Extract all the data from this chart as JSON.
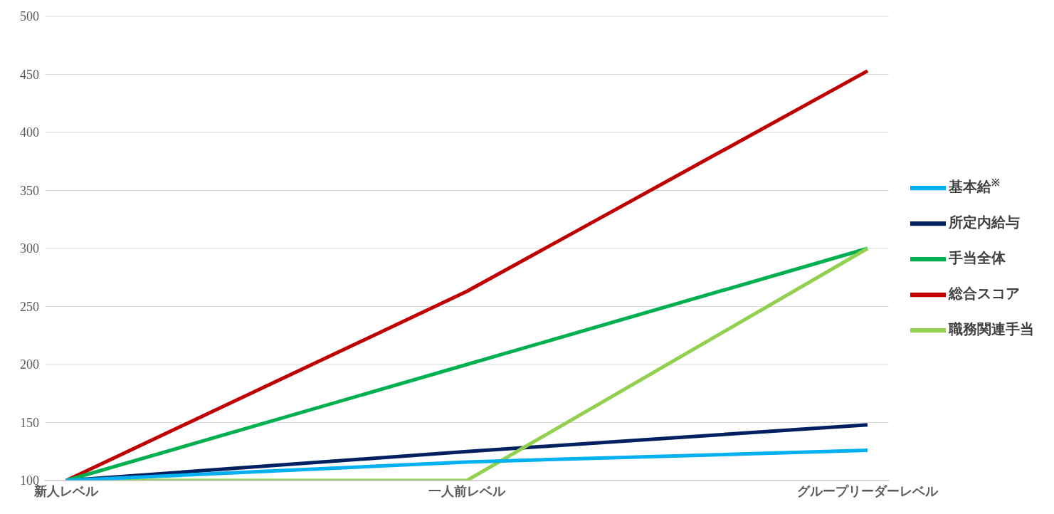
{
  "chart_data": {
    "type": "line",
    "categories": [
      "新人レベル",
      "一人前レベル",
      "グループリーダーレベル"
    ],
    "series": [
      {
        "name": "総合スコア",
        "color": "#c00000",
        "values": [
          100,
          263,
          453
        ]
      },
      {
        "name": "所定内給与",
        "color": "#002060",
        "values": [
          100,
          125,
          148
        ]
      },
      {
        "name": "手当全体",
        "color": "#00b050",
        "values": [
          100,
          200,
          300
        ]
      },
      {
        "name": "職務関連手当",
        "color": "#92d050",
        "values": [
          100,
          100,
          300
        ]
      },
      {
        "name": "基本給$^{※}$",
        "color": "#00b0f0",
        "values": [
          100,
          116,
          126
        ]
      }
    ],
    "ylim": [
      100,
      500
    ],
    "yticks": [
      100,
      150,
      200,
      250,
      300,
      350,
      400,
      450,
      500
    ],
    "grid": "y",
    "legend": "right",
    "marker": "none",
    "line_style": "solid"
  }
}
